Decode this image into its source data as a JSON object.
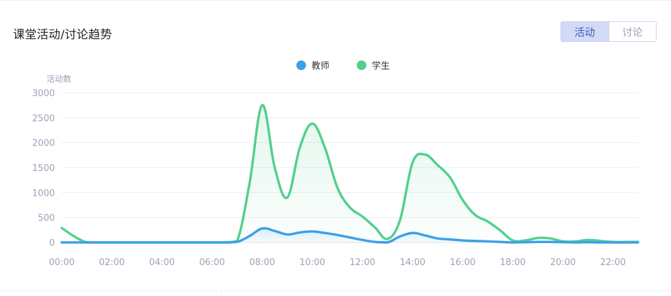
{
  "header": {
    "title": "课堂活动/讨论趋势",
    "tabs": [
      {
        "label": "活动",
        "active": true
      },
      {
        "label": "讨论",
        "active": false
      }
    ]
  },
  "colors": {
    "teacher": "#3ca0e6",
    "student": "#52d08c",
    "grid": "#e9ecf0",
    "axis_text": "#9aa3b5",
    "tab_active_bg": "#d2dbf5",
    "tab_active_text": "#3e59c5"
  },
  "chart_data": {
    "type": "line",
    "title": "",
    "ylabel": "活动数",
    "xlabel": "",
    "ylim": [
      0,
      3000
    ],
    "yticks": [
      0,
      500,
      1000,
      1500,
      2000,
      2500,
      3000
    ],
    "xticks": [
      "00:00",
      "02:00",
      "04:00",
      "06:00",
      "08:00",
      "10:00",
      "12:00",
      "14:00",
      "16:00",
      "18:00",
      "20:00",
      "22:00"
    ],
    "x": [
      "00:00",
      "00:30",
      "01:00",
      "01:30",
      "02:00",
      "02:30",
      "03:00",
      "03:30",
      "04:00",
      "04:30",
      "05:00",
      "05:30",
      "06:00",
      "06:30",
      "07:00",
      "07:30",
      "08:00",
      "08:30",
      "09:00",
      "09:30",
      "10:00",
      "10:30",
      "11:00",
      "11:30",
      "12:00",
      "12:30",
      "13:00",
      "13:30",
      "14:00",
      "14:30",
      "15:00",
      "15:30",
      "16:00",
      "16:30",
      "17:00",
      "17:30",
      "18:00",
      "18:30",
      "19:00",
      "19:30",
      "20:00",
      "20:30",
      "21:00",
      "21:30",
      "22:00",
      "22:30",
      "23:00"
    ],
    "legend_position": "top-center",
    "grid": true,
    "series": [
      {
        "name": "教师",
        "color": "#3ca0e6",
        "values": [
          0,
          0,
          0,
          0,
          0,
          0,
          0,
          0,
          0,
          0,
          0,
          0,
          0,
          0,
          10,
          130,
          280,
          230,
          160,
          200,
          220,
          190,
          150,
          100,
          50,
          10,
          0,
          120,
          190,
          140,
          80,
          60,
          40,
          30,
          20,
          10,
          0,
          5,
          10,
          10,
          5,
          0,
          5,
          0,
          0,
          0,
          0
        ]
      },
      {
        "name": "学生",
        "color": "#52d08c",
        "values": [
          290,
          120,
          0,
          0,
          0,
          0,
          0,
          0,
          0,
          0,
          0,
          0,
          0,
          0,
          30,
          1200,
          2750,
          1500,
          900,
          1900,
          2380,
          1900,
          1100,
          700,
          520,
          300,
          70,
          450,
          1600,
          1760,
          1550,
          1300,
          850,
          550,
          420,
          240,
          40,
          40,
          90,
          80,
          20,
          20,
          50,
          30,
          10,
          10,
          10
        ]
      }
    ]
  }
}
